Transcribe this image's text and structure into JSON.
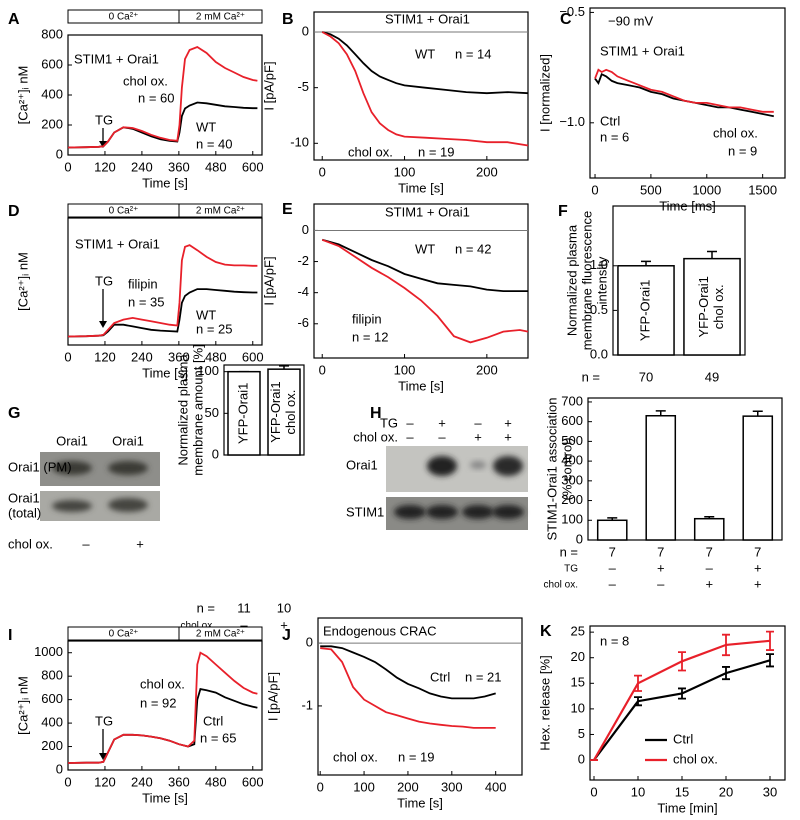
{
  "chart_data": [
    {
      "type": "line",
      "label": "A",
      "xlabel": "Time [s]",
      "ylabel": "[Ca²⁺]ᵢ nM",
      "solution_labels": [
        "0 Ca²⁺",
        "2 mM Ca²⁺"
      ],
      "xlim": [
        0,
        630
      ],
      "xticks": [
        0,
        120,
        240,
        360,
        480,
        600
      ],
      "ylim": [
        0,
        800
      ],
      "yticks": [
        0,
        200,
        400,
        600,
        800
      ],
      "annotations": [
        {
          "text": "STIM1 + Orai1",
          "color": "#000000"
        },
        {
          "text": "n = 60",
          "color": "#e8202a"
        },
        {
          "text": "n = 40",
          "color": "#000000"
        },
        {
          "text": "TG",
          "color": "#000000"
        }
      ],
      "x": [
        0,
        60,
        100,
        115,
        130,
        150,
        180,
        210,
        240,
        270,
        300,
        330,
        355,
        362,
        370,
        380,
        395,
        420,
        450,
        480,
        510,
        540,
        570,
        600,
        615
      ],
      "series": [
        {
          "name": "WT",
          "color": "#000000",
          "values": [
            50,
            52,
            55,
            58,
            90,
            150,
            185,
            175,
            150,
            125,
            105,
            95,
            90,
            150,
            260,
            310,
            330,
            350,
            345,
            335,
            325,
            320,
            315,
            312,
            312
          ]
        },
        {
          "name": "chol ox.",
          "color": "#e8202a",
          "values": [
            50,
            52,
            55,
            58,
            90,
            150,
            185,
            180,
            160,
            135,
            115,
            100,
            95,
            200,
            450,
            640,
            700,
            720,
            680,
            620,
            580,
            550,
            520,
            500,
            495
          ]
        }
      ]
    },
    {
      "type": "line",
      "label": "B",
      "xlabel": "Time [s]",
      "ylabel": "I [pA/pF]",
      "zero_line": true,
      "xlim": [
        -10,
        250
      ],
      "xticks": [
        0,
        100,
        200
      ],
      "ylim": [
        -11.5,
        1.8
      ],
      "yticks": [
        0,
        -5,
        -10
      ],
      "annotations": [
        {
          "text": "STIM1 + Orai1",
          "color": "#000000"
        },
        {
          "text": "n = 14",
          "color": "#000000"
        },
        {
          "text": "n = 19",
          "color": "#e8202a"
        }
      ],
      "x": [
        0,
        10,
        20,
        30,
        40,
        50,
        60,
        70,
        80,
        90,
        100,
        125,
        150,
        175,
        200,
        225,
        250
      ],
      "series": [
        {
          "name": "WT",
          "color": "#000000",
          "values": [
            0,
            -0.2,
            -0.6,
            -1.2,
            -2,
            -2.8,
            -3.5,
            -4,
            -4.3,
            -4.6,
            -4.8,
            -5,
            -5.2,
            -5.4,
            -5.5,
            -5.4,
            -5.5
          ]
        },
        {
          "name": "chol ox.",
          "color": "#e8202a",
          "values": [
            0,
            -0.4,
            -1,
            -2,
            -3.5,
            -5.5,
            -7.2,
            -8.2,
            -8.8,
            -9.2,
            -9.4,
            -9.5,
            -9.6,
            -9.7,
            -9.9,
            -9.9,
            -10.2
          ]
        }
      ]
    },
    {
      "type": "line",
      "label": "C",
      "xlabel": "Time [ms]",
      "ylabel": "I [normalized]",
      "xlim": [
        -45,
        1700
      ],
      "xticks": [
        0,
        500,
        1000,
        1500
      ],
      "ylim": [
        -1.25,
        -0.48
      ],
      "yticks": [
        {
          "value": -0.5,
          "label": "−0.5"
        },
        {
          "value": -1.0,
          "label": "−1.0"
        }
      ],
      "annotations": [
        {
          "text": "−90 mV",
          "color": "#000000"
        },
        {
          "text": "STIM1 + Orai1",
          "color": "#000000"
        },
        {
          "text": "n = 6",
          "color": "#e8202a"
        },
        {
          "text": "n = 9",
          "color": "#000000"
        }
      ],
      "x": [
        0,
        30,
        60,
        100,
        150,
        200,
        300,
        400,
        500,
        600,
        700,
        800,
        900,
        1000,
        1100,
        1200,
        1300,
        1400,
        1500,
        1600
      ],
      "series": [
        {
          "name": "Ctrl",
          "color": "#000000",
          "values": [
            -0.8,
            -0.82,
            -0.78,
            -0.79,
            -0.81,
            -0.82,
            -0.83,
            -0.84,
            -0.86,
            -0.87,
            -0.89,
            -0.9,
            -0.91,
            -0.92,
            -0.93,
            -0.93,
            -0.94,
            -0.95,
            -0.96,
            -0.97
          ]
        },
        {
          "name": "chol ox.",
          "color": "#e8202a",
          "values": [
            -0.8,
            -0.76,
            -0.77,
            -0.76,
            -0.77,
            -0.79,
            -0.81,
            -0.83,
            -0.85,
            -0.86,
            -0.88,
            -0.9,
            -0.91,
            -0.91,
            -0.92,
            -0.93,
            -0.93,
            -0.94,
            -0.95,
            -0.95
          ]
        }
      ]
    },
    {
      "type": "line",
      "label": "D",
      "xlabel": "Time [s]",
      "ylabel": "[Ca²⁺]ᵢ nM",
      "solution_labels": [
        "0 Ca²⁺",
        "2 mM Ca²⁺"
      ],
      "xlim": [
        0,
        630
      ],
      "xticks": [
        0,
        120,
        240,
        360,
        480,
        600
      ],
      "ylim": [
        0,
        750
      ],
      "yticks": [],
      "annotations": [
        {
          "text": "STIM1 + Orai1",
          "color": "#000000"
        },
        {
          "text": "n = 35",
          "color": "#e8202a"
        },
        {
          "text": "n = 25",
          "color": "#000000"
        },
        {
          "text": "TG",
          "color": "#000000"
        }
      ],
      "x": [
        0,
        60,
        100,
        115,
        130,
        150,
        180,
        210,
        240,
        270,
        300,
        330,
        355,
        362,
        370,
        380,
        395,
        420,
        450,
        480,
        510,
        540,
        570,
        600,
        615
      ],
      "series": [
        {
          "name": "WT",
          "color": "#000000",
          "values": [
            50,
            52,
            55,
            58,
            80,
            120,
            120,
            110,
            100,
            90,
            85,
            82,
            80,
            150,
            250,
            290,
            310,
            330,
            330,
            325,
            320,
            315,
            312,
            310,
            310
          ]
        },
        {
          "name": "filipin",
          "color": "#e8202a",
          "values": [
            50,
            52,
            55,
            60,
            90,
            130,
            150,
            160,
            150,
            140,
            130,
            120,
            115,
            250,
            500,
            580,
            590,
            560,
            520,
            490,
            475,
            470,
            470,
            468,
            468
          ]
        }
      ]
    },
    {
      "type": "line",
      "label": "E",
      "xlabel": "Time [s]",
      "ylabel": "I [pA/pF]",
      "zero_line": true,
      "xlim": [
        -10,
        250
      ],
      "xticks": [
        0,
        100,
        200
      ],
      "ylim": [
        -8.2,
        1.7
      ],
      "yticks": [
        0,
        -2,
        -4,
        -6
      ],
      "annotations": [
        {
          "text": "STIM1 + Orai1",
          "color": "#000000"
        },
        {
          "text": "n = 42",
          "color": "#000000"
        },
        {
          "text": "n = 12",
          "color": "#e8202a"
        }
      ],
      "x": [
        0,
        20,
        40,
        60,
        80,
        100,
        120,
        140,
        160,
        180,
        200,
        220,
        240,
        250
      ],
      "series": [
        {
          "name": "WT",
          "color": "#000000",
          "values": [
            -0.6,
            -0.9,
            -1.4,
            -1.9,
            -2.3,
            -2.8,
            -3.1,
            -3.4,
            -3.5,
            -3.6,
            -3.8,
            -3.9,
            -3.9,
            -3.9
          ]
        },
        {
          "name": "filipin",
          "color": "#e8202a",
          "values": [
            -0.6,
            -1,
            -1.7,
            -2.4,
            -3,
            -3.7,
            -4.5,
            -5.5,
            -6.8,
            -7.2,
            -6.9,
            -6.5,
            -6.4,
            -6.5
          ]
        }
      ]
    },
    {
      "type": "bar",
      "label": "F",
      "ylabel": [
        "Normalized plasma",
        "membrane fluorescence",
        "intensity"
      ],
      "categories": [
        [
          "YFP-Orai1"
        ],
        [
          "YFP-Orai1",
          "chol ox."
        ]
      ],
      "values": [
        1.0,
        1.08
      ],
      "errors": [
        0.05,
        0.08
      ],
      "color": "#ffffff",
      "ylim": [
        0,
        1.67
      ],
      "yticks": [
        {
          "value": 0,
          "label": "0.0"
        },
        0.5,
        {
          "value": 1,
          "label": "1.0"
        }
      ],
      "rows": [
        {
          "label": "n =",
          "cells": [
            "70",
            "49"
          ]
        }
      ]
    },
    {
      "type": "bar",
      "label": "G",
      "ylabel": [
        "Normalized plasma",
        "membrane amount [%]"
      ],
      "categories": [
        [
          "YFP-Orai1"
        ],
        [
          "YFP-Orai1",
          "chol ox."
        ]
      ],
      "values": [
        100,
        103
      ],
      "errors": [
        0,
        4
      ],
      "color": "#ffffff",
      "ylim": [
        0,
        108
      ],
      "yticks": [
        0,
        50,
        100
      ],
      "rows": [
        {
          "label": "n =",
          "cells": [
            "11",
            "10"
          ]
        },
        {
          "label": "chol ox.",
          "cells": [
            "–",
            "+"
          ]
        }
      ]
    },
    {
      "type": "bar",
      "label": "H",
      "ylabel": [
        "STIM1-Orai1 association",
        "(% control)"
      ],
      "values": [
        100,
        630,
        108,
        628
      ],
      "errors": [
        12,
        25,
        10,
        25
      ],
      "color": "#ffffff",
      "ylim": [
        0,
        720
      ],
      "yticks": [
        0,
        100,
        200,
        300,
        400,
        500,
        600,
        700
      ],
      "rows": [
        {
          "label": "n =",
          "cells": [
            "7",
            "7",
            "7",
            "7"
          ]
        },
        {
          "label": "TG",
          "cells": [
            "–",
            "+",
            "–",
            "+"
          ]
        },
        {
          "label": "chol ox.",
          "cells": [
            "–",
            "–",
            "+",
            "+"
          ]
        }
      ]
    },
    {
      "type": "line",
      "label": "I",
      "xlabel": "Time [s]",
      "ylabel": "[Ca²⁺]ᵢ nM",
      "solution_labels": [
        "0 Ca²⁺",
        "2 mM Ca²⁺"
      ],
      "xlim": [
        0,
        630
      ],
      "xticks": [
        0,
        120,
        240,
        360,
        480,
        600
      ],
      "ylim": [
        0,
        1100
      ],
      "yticks": [
        0,
        200,
        400,
        600,
        800,
        1000
      ],
      "annotations": [
        {
          "text": "n = 92",
          "color": "#e8202a"
        },
        {
          "text": "n = 65",
          "color": "#000000"
        },
        {
          "text": "TG",
          "color": "#000000"
        }
      ],
      "x": [
        0,
        60,
        100,
        115,
        130,
        150,
        180,
        210,
        240,
        270,
        300,
        330,
        360,
        390,
        410,
        420,
        430,
        450,
        480,
        510,
        540,
        570,
        600,
        615
      ],
      "series": [
        {
          "name": "Ctrl",
          "color": "#000000",
          "values": [
            60,
            62,
            62,
            70,
            150,
            260,
            300,
            300,
            295,
            285,
            270,
            250,
            220,
            200,
            220,
            600,
            690,
            680,
            660,
            620,
            590,
            560,
            540,
            530
          ]
        },
        {
          "name": "chol ox.",
          "color": "#e8202a",
          "values": [
            60,
            62,
            62,
            70,
            150,
            260,
            300,
            300,
            295,
            285,
            270,
            250,
            220,
            200,
            250,
            900,
            1000,
            970,
            900,
            830,
            760,
            700,
            660,
            650
          ]
        }
      ]
    },
    {
      "type": "line",
      "label": "J",
      "xlabel": "Time [s]",
      "ylabel": "I [pA/pF]",
      "zero_line": true,
      "xlim": [
        -5,
        460
      ],
      "xticks": [
        0,
        100,
        200,
        300,
        400
      ],
      "ylim": [
        -2.1,
        0.4
      ],
      "yticks": [
        0,
        -1
      ],
      "annotations": [
        {
          "text": "Endogenous CRAC",
          "color": "#000000"
        },
        {
          "text": "n = 21",
          "color": "#000000"
        },
        {
          "text": "n = 19",
          "color": "#e8202a"
        }
      ],
      "x": [
        0,
        25,
        50,
        75,
        100,
        125,
        150,
        175,
        200,
        225,
        250,
        275,
        300,
        325,
        350,
        375,
        400
      ],
      "series": [
        {
          "name": "Ctrl",
          "color": "#000000",
          "values": [
            -0.05,
            -0.05,
            -0.08,
            -0.15,
            -0.22,
            -0.3,
            -0.42,
            -0.55,
            -0.65,
            -0.72,
            -0.8,
            -0.85,
            -0.88,
            -0.88,
            -0.88,
            -0.85,
            -0.8
          ]
        },
        {
          "name": "chol ox.",
          "color": "#e8202a",
          "values": [
            -0.08,
            -0.1,
            -0.3,
            -0.7,
            -0.9,
            -1.0,
            -1.1,
            -1.15,
            -1.2,
            -1.25,
            -1.28,
            -1.3,
            -1.32,
            -1.33,
            -1.35,
            -1.35,
            -1.35
          ]
        }
      ]
    },
    {
      "type": "line",
      "label": "K",
      "xlabel": "Time [min]",
      "ylabel": "Hex. release [%]",
      "legend": "lower right",
      "categories": [
        "0",
        "10",
        "15",
        "20",
        "30"
      ],
      "ylim": [
        -3.9,
        26.2
      ],
      "yticks": [
        0,
        5,
        10,
        15,
        20,
        25
      ],
      "annotations": [
        {
          "text": "n = 8",
          "color": "#000000"
        }
      ],
      "series": [
        {
          "name": "Ctrl",
          "color": "#000000",
          "values": [
            0,
            11.5,
            13,
            17,
            19.5
          ],
          "errors": [
            0,
            0.8,
            1,
            1.2,
            1.2
          ]
        },
        {
          "name": "chol ox.",
          "color": "#e8202a",
          "values": [
            0,
            15,
            19.3,
            22.5,
            23.3
          ],
          "errors": [
            0,
            1.5,
            1.8,
            2,
            1.8
          ]
        }
      ]
    }
  ],
  "blots": [
    {
      "column_labels": [
        "Orai1",
        "Orai1"
      ],
      "row_labels": [
        [
          "Orai1 (PM)"
        ],
        [
          "Orai1",
          "(total)"
        ]
      ],
      "conditions": [
        {
          "label": "chol ox.",
          "cells": [
            "–",
            "+"
          ]
        }
      ]
    },
    {
      "row_labels": [
        [
          "Orai1"
        ],
        [
          "STIM1"
        ]
      ],
      "conditions": [
        {
          "label": "TG",
          "cells": [
            "–",
            "+",
            "–",
            "+"
          ]
        },
        {
          "label": "chol ox.",
          "cells": [
            "–",
            "–",
            "+",
            "+"
          ]
        }
      ]
    }
  ]
}
